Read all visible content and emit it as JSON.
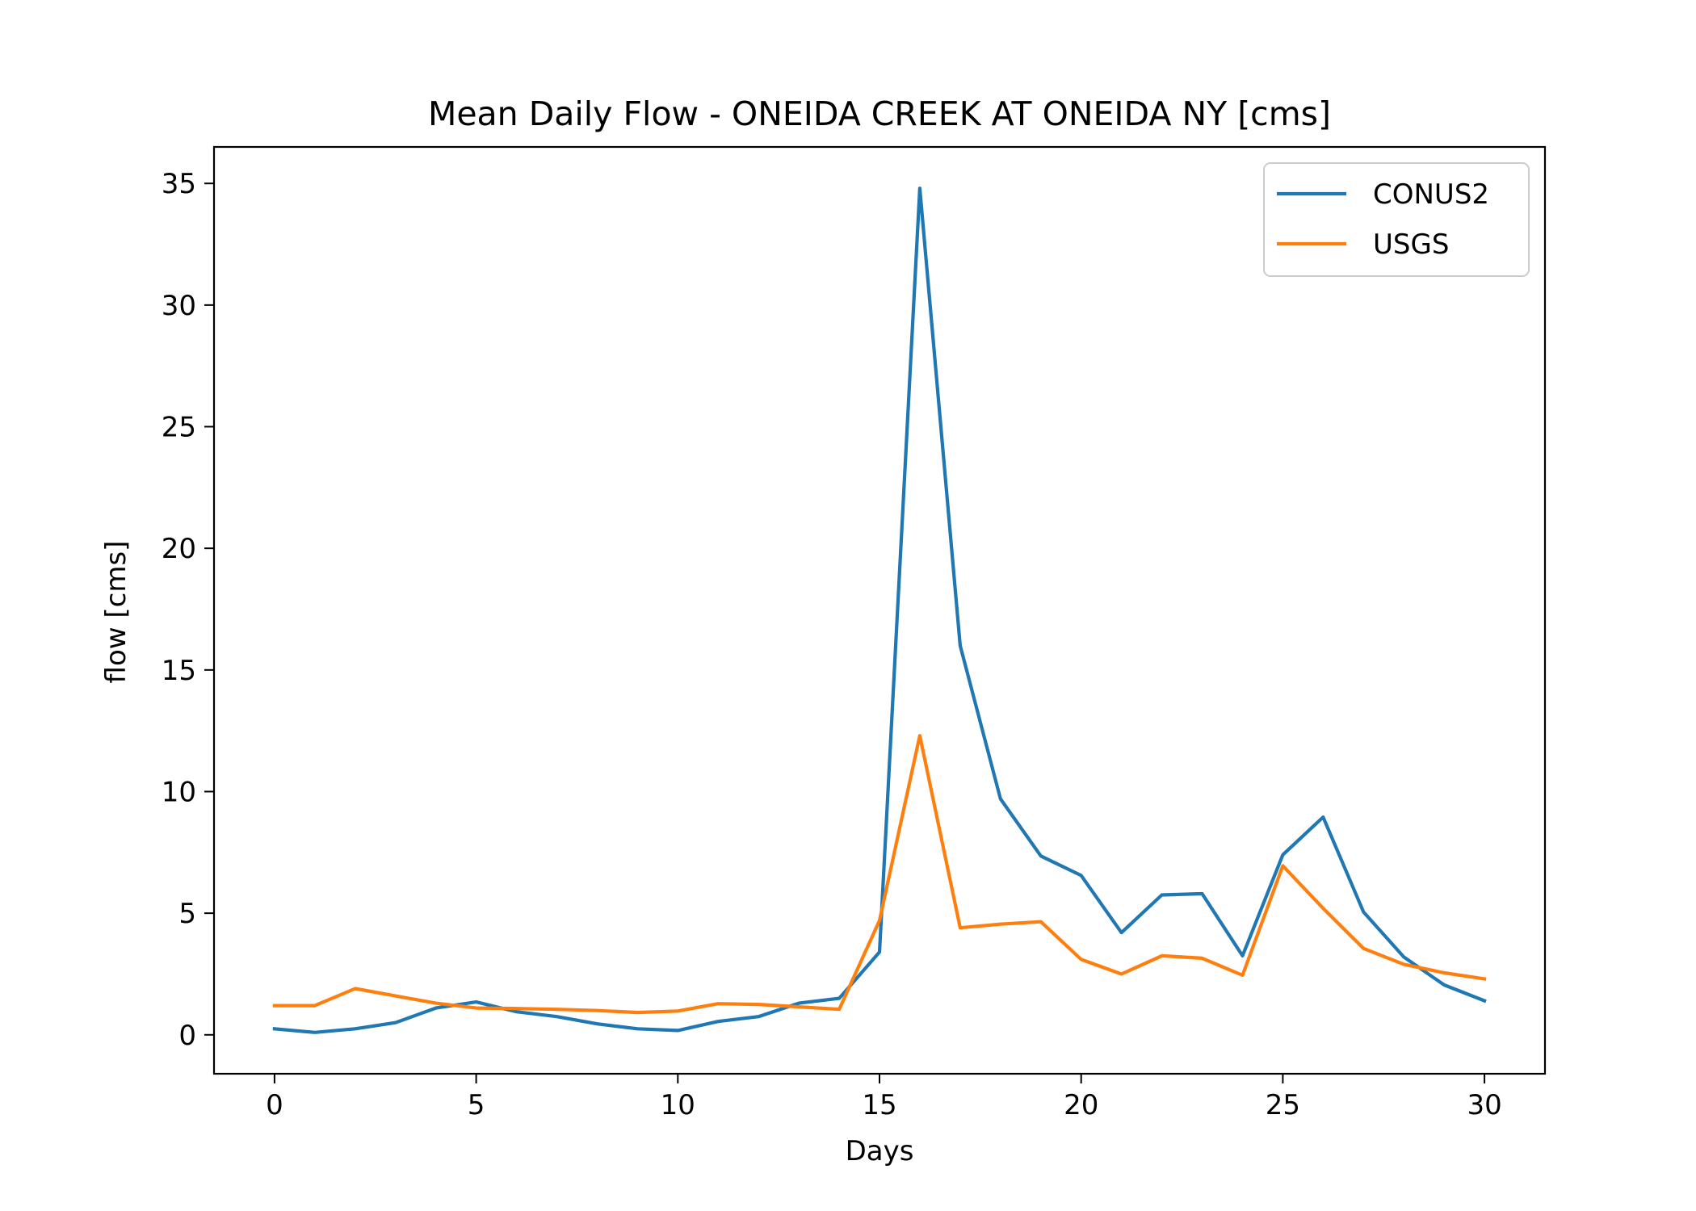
{
  "chart_data": {
    "type": "line",
    "title": "Mean Daily Flow - ONEIDA CREEK AT ONEIDA NY [cms]",
    "xlabel": "Days",
    "ylabel": "flow [cms]",
    "xlim": [
      -1.5,
      31.5
    ],
    "ylim": [
      -1.6,
      36.5
    ],
    "xticks": [
      0,
      5,
      10,
      15,
      20,
      25,
      30
    ],
    "yticks": [
      0,
      5,
      10,
      15,
      20,
      25,
      30,
      35
    ],
    "grid": false,
    "legend": "top-right",
    "x": [
      0,
      1,
      2,
      3,
      4,
      5,
      6,
      7,
      8,
      9,
      10,
      11,
      12,
      13,
      14,
      15,
      16,
      17,
      18,
      19,
      20,
      21,
      22,
      23,
      24,
      25,
      26,
      27,
      28,
      29,
      30
    ],
    "series": [
      {
        "name": "CONUS2",
        "color": "#1f77b4",
        "values": [
          0.25,
          0.1,
          0.25,
          0.5,
          1.1,
          1.35,
          0.95,
          0.75,
          0.45,
          0.25,
          0.18,
          0.55,
          0.75,
          1.3,
          1.5,
          3.4,
          34.8,
          16.0,
          9.7,
          7.35,
          6.55,
          4.2,
          5.75,
          5.8,
          3.25,
          7.4,
          8.95,
          5.05,
          3.2,
          2.05,
          1.4
        ]
      },
      {
        "name": "USGS",
        "color": "#ff7f0e",
        "values": [
          1.2,
          1.2,
          1.9,
          1.6,
          1.3,
          1.1,
          1.08,
          1.05,
          1.0,
          0.92,
          0.98,
          1.28,
          1.25,
          1.15,
          1.05,
          4.7,
          12.3,
          4.4,
          4.55,
          4.65,
          3.1,
          2.5,
          3.25,
          3.15,
          2.45,
          6.95,
          5.2,
          3.55,
          2.9,
          2.55,
          2.3
        ]
      }
    ]
  }
}
